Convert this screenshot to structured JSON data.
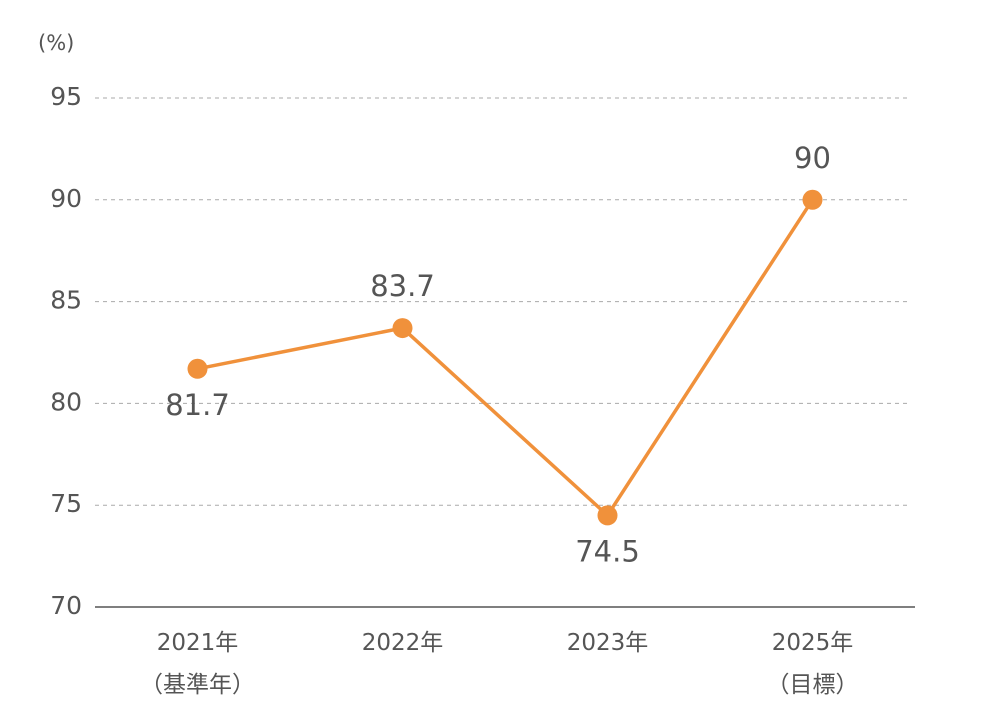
{
  "chart_data": {
    "type": "line",
    "y_unit": "(%)",
    "categories": [
      [
        "2021年",
        "（基準年）"
      ],
      [
        "2022年"
      ],
      [
        "2023年"
      ],
      [
        "2025年",
        "（目標）"
      ]
    ],
    "series": [
      {
        "color": "#f0913b",
        "values": [
          81.7,
          83.7,
          74.5,
          90
        ]
      }
    ],
    "ylim": [
      70,
      95
    ],
    "yticks": [
      70,
      75,
      80,
      85,
      90,
      95
    ],
    "grid": true
  }
}
